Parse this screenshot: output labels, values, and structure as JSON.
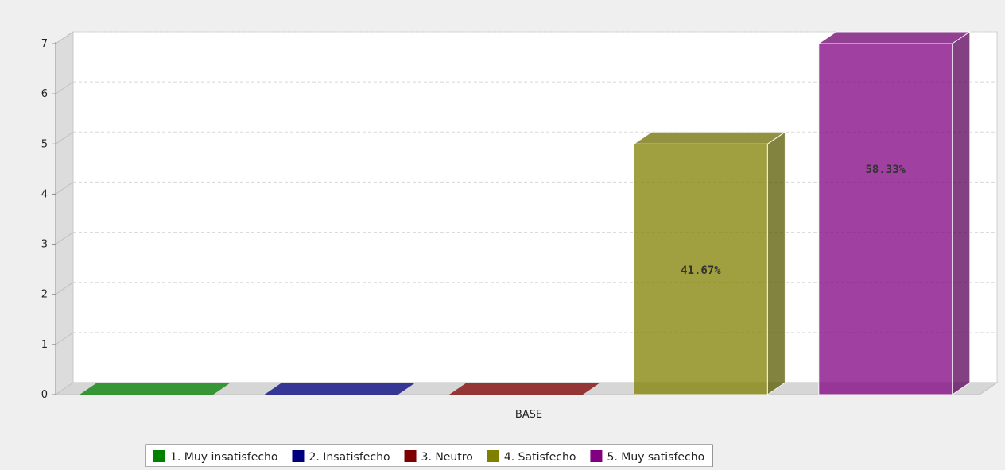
{
  "chart_data": {
    "type": "bar",
    "style": "3d",
    "title": "",
    "xlabel": "",
    "ylabel": "",
    "categories": [
      "BASE"
    ],
    "ylim": [
      0,
      7
    ],
    "yticks": [
      "0",
      "1",
      "2",
      "3",
      "4",
      "5",
      "6",
      "7"
    ],
    "grid": true,
    "legend_position": "bottom",
    "series": [
      {
        "name": "1. Muy insatisfecho",
        "values": [
          0
        ],
        "label": "",
        "color": "#008000"
      },
      {
        "name": "2. Insatisfecho",
        "values": [
          0
        ],
        "label": "",
        "color": "#00007f"
      },
      {
        "name": "3. Neutro",
        "values": [
          0
        ],
        "label": "",
        "color": "#7f0000"
      },
      {
        "name": "4. Satisfecho",
        "values": [
          5
        ],
        "label": "41.67%",
        "color": "#808000"
      },
      {
        "name": "5. Muy satisfecho",
        "values": [
          7
        ],
        "label": "58.33%",
        "color": "#800080"
      }
    ]
  }
}
